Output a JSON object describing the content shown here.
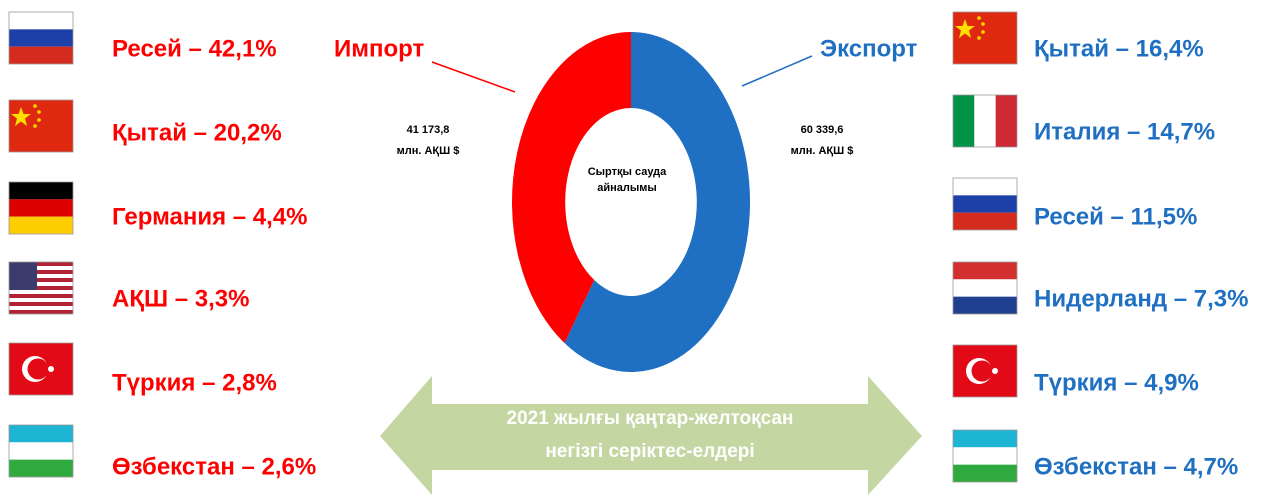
{
  "chart_data": {
    "type": "donut",
    "series": [
      {
        "name": "Экспорт",
        "color": "#1f6fc2",
        "values": [
          60339.6
        ],
        "value_labels": [
          "60 339,6"
        ]
      },
      {
        "name": "Импорт",
        "color": "#ff0000",
        "values": [
          41173.8
        ],
        "value_labels": [
          "41 173,8"
        ]
      }
    ],
    "unit_label": "млн. АҚШ $",
    "center_label": [
      "Сыртқы сауда",
      "айналымы"
    ]
  },
  "import_partners": [
    "Ресей – 42,1%",
    "Қытай – 20,2%",
    "Германия – 4,4%",
    "АҚШ – 3,3%",
    "Түркия – 2,8%",
    "Өзбекстан – 2,6%"
  ],
  "export_partners": [
    "Қытай – 16,4%",
    "Италия – 14,7%",
    "Ресей – 11,5%",
    "Нидерланд – 7,3%",
    "Түркия – 4,9%",
    "Өзбекстан – 4,7%"
  ],
  "arrow_text": [
    "2021 жылғы қаңтар-желтоқсан",
    "негізгі  серіктес-елдері"
  ]
}
